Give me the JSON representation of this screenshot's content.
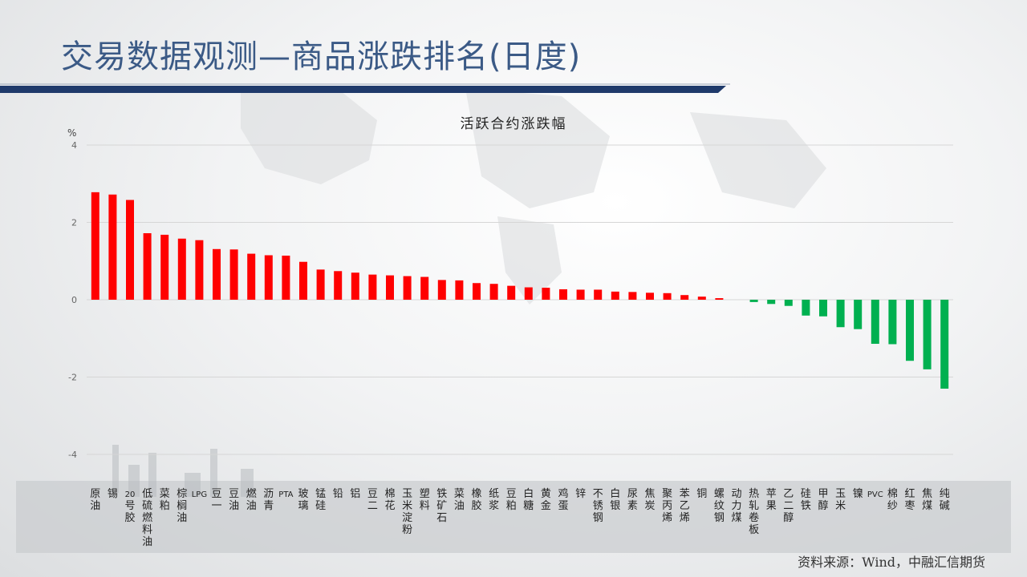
{
  "page": {
    "title": "交易数据观测—商品涨跌排名(日度)",
    "source": "资料来源：Wind，中融汇信期货",
    "accent_color": "#1f3a6b"
  },
  "chart_data": {
    "type": "bar",
    "title": "活跃合约涨跌幅",
    "ylabel": "%",
    "xlabel": "",
    "ylim": [
      -4,
      4
    ],
    "yticks": [
      4,
      2,
      0,
      -2,
      -4
    ],
    "grid": true,
    "positive_color": "#ff0000",
    "negative_color": "#00b050",
    "categories": [
      "原油",
      "锡",
      "20号胶",
      "低硫燃料油",
      "菜粕",
      "棕榈油",
      "LPG",
      "豆一",
      "豆油",
      "燃油",
      "沥青",
      "PTA",
      "玻璃",
      "锰硅",
      "铅",
      "铝",
      "豆二",
      "棉花",
      "玉米淀粉",
      "塑料",
      "铁矿石",
      "菜油",
      "橡胶",
      "纸浆",
      "豆粕",
      "白糖",
      "黄金",
      "鸡蛋",
      "锌",
      "不锈钢",
      "白银",
      "尿素",
      "焦炭",
      "聚丙烯",
      "苯乙烯",
      "铜",
      "螺纹钢",
      "动力煤",
      "热轧卷板",
      "苹果",
      "乙二醇",
      "硅铁",
      "甲醇",
      "玉米",
      "镍",
      "PVC",
      "棉纱",
      "红枣",
      "焦煤",
      "纯碱"
    ],
    "values": [
      2.78,
      2.72,
      2.58,
      1.72,
      1.68,
      1.58,
      1.54,
      1.31,
      1.3,
      1.19,
      1.15,
      1.14,
      0.98,
      0.78,
      0.74,
      0.7,
      0.65,
      0.63,
      0.61,
      0.59,
      0.51,
      0.5,
      0.43,
      0.41,
      0.36,
      0.32,
      0.31,
      0.27,
      0.26,
      0.26,
      0.21,
      0.2,
      0.18,
      0.17,
      0.12,
      0.08,
      0.04,
      0.0,
      -0.06,
      -0.11,
      -0.16,
      -0.41,
      -0.43,
      -0.71,
      -0.76,
      -1.14,
      -1.15,
      -1.58,
      -1.8,
      -2.3
    ]
  }
}
